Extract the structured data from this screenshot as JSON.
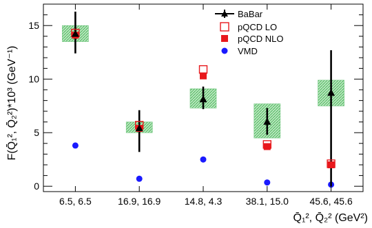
{
  "chart_data": {
    "type": "scatter",
    "categories": [
      "6.5, 6.5",
      "16.9, 16.9",
      "14.8, 4.3",
      "38.1, 15.0",
      "45.6, 45.6"
    ],
    "ylim": [
      -0.5,
      17
    ],
    "yticks": [
      0,
      5,
      10,
      15
    ],
    "ylabel": "F(Q̄₁², Q̄₂²)*10³ (GeV⁻¹)",
    "xlabel": "Q̄₁², Q̄₂² (GeV²)",
    "grid": false,
    "legend": {
      "placement": "top-center",
      "entries": [
        {
          "name": "BaBar",
          "marker": "triangle-with-errorbar"
        },
        {
          "name": "pQCD LO",
          "marker": "open-square"
        },
        {
          "name": "pQCD NLO",
          "marker": "filled-square"
        },
        {
          "name": "VMD",
          "marker": "filled-circle"
        }
      ]
    },
    "colors": {
      "babar": "#000000",
      "pqcd_lo": "#e8181c",
      "pqcd_nlo": "#e8181c",
      "vmd": "#1a1aff",
      "syst_band": "#7fd08a"
    },
    "series": [
      {
        "name": "BaBar",
        "values": [
          14.2,
          5.4,
          8.1,
          6.0,
          8.7
        ],
        "err_low": [
          1.8,
          2.2,
          0.9,
          1.2,
          8.7
        ],
        "err_high": [
          2.1,
          1.7,
          1.2,
          1.3,
          4.0
        ],
        "syst_low": [
          13.5,
          5.0,
          7.3,
          4.5,
          7.5
        ],
        "syst_high": [
          15.0,
          6.0,
          9.1,
          7.7,
          9.9
        ]
      },
      {
        "name": "pQCD LO",
        "values": [
          14.3,
          5.7,
          10.9,
          3.9,
          2.1
        ]
      },
      {
        "name": "pQCD NLO",
        "values": [
          14.1,
          5.4,
          10.3,
          3.7,
          2.0
        ]
      },
      {
        "name": "VMD",
        "values": [
          3.8,
          0.7,
          2.5,
          0.35,
          0.15
        ]
      }
    ]
  }
}
